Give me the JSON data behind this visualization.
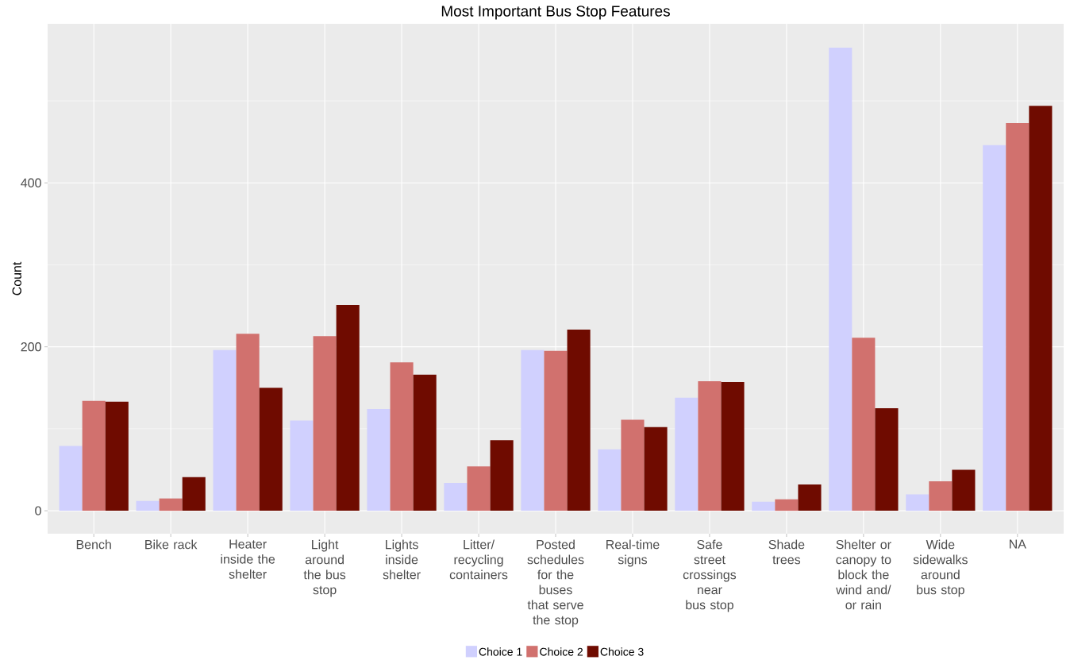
{
  "chart_data": {
    "type": "bar",
    "title": "Most Important Bus Stop Features",
    "ylabel": "Count",
    "categories": [
      "Bench",
      "Bike rack",
      "Heater inside the shelter",
      "Light around the bus stop",
      "Lights inside shelter",
      "Litter/recycling containers",
      "Posted schedules for the buses that serve the stop",
      "Real-time signs",
      "Safe street crossings near bus stop",
      "Shade trees",
      "Shelter or canopy to block the wind and/or rain",
      "Wide sidewalks around bus stop",
      "NA"
    ],
    "series": [
      {
        "name": "Choice 1",
        "color": "#d0d0fe",
        "values": [
          79,
          12,
          196,
          110,
          124,
          34,
          196,
          75,
          138,
          11,
          565,
          20,
          446
        ]
      },
      {
        "name": "Choice 2",
        "color": "#d1716e",
        "values": [
          134,
          15,
          216,
          213,
          181,
          54,
          195,
          111,
          158,
          14,
          211,
          36,
          473
        ]
      },
      {
        "name": "Choice 3",
        "color": "#6f0b00",
        "values": [
          133,
          41,
          150,
          251,
          166,
          86,
          221,
          102,
          157,
          32,
          125,
          50,
          494
        ]
      }
    ],
    "ylim": [
      -28,
      594
    ],
    "yticks": [
      0,
      200,
      400
    ],
    "grid": true,
    "legend": "bottom"
  }
}
